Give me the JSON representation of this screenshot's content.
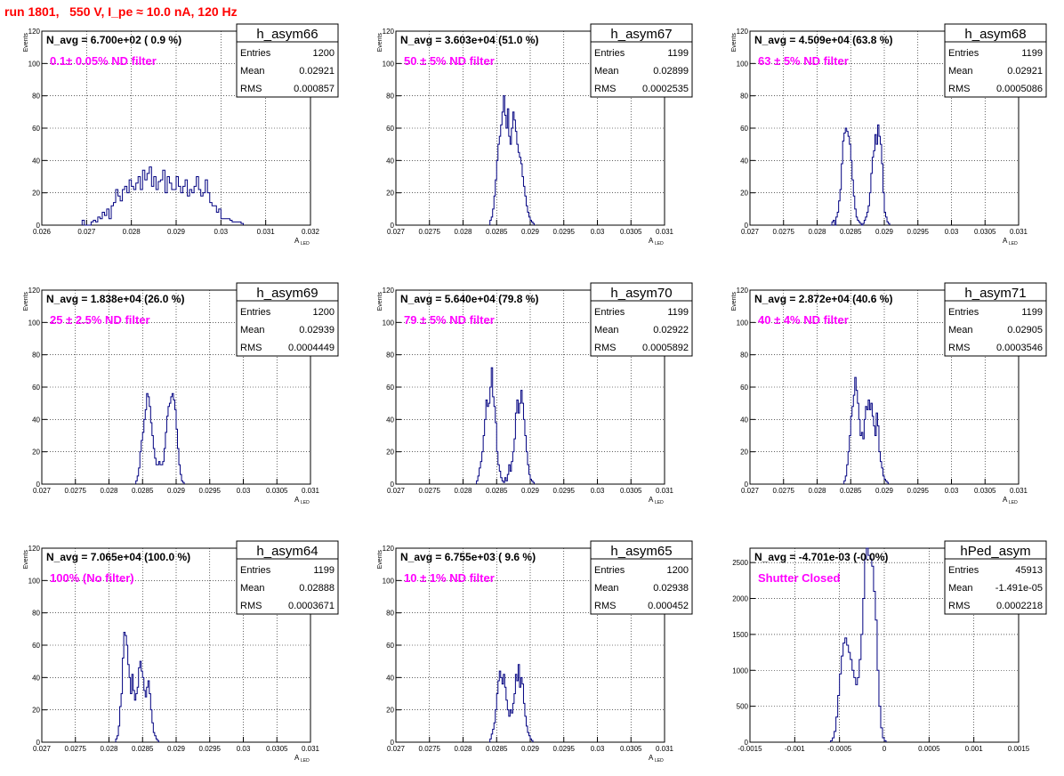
{
  "page": {
    "title": "run 1801,   550 V, I_pe ≈ 10.0 nA, 120 Hz"
  },
  "chart_data": [
    {
      "type": "histogram",
      "name": "h_asym66",
      "stats": [
        [
          "Entries",
          "1200"
        ],
        [
          "Mean",
          "0.02921"
        ],
        [
          "RMS",
          "0.000857"
        ]
      ],
      "navg": "N_avg = 6.700e+02 ( 0.9 %)",
      "filter": "0.1± 0.05% ND filter",
      "xlabel": "A",
      "xlabel_sub": "LED",
      "ylabel": "Events",
      "xlim": [
        0.026,
        0.032
      ],
      "ylim": [
        0,
        120
      ],
      "xticks": [
        "0.026",
        "0.027",
        "0.028",
        "0.029",
        "0.03",
        "0.031",
        "0.032"
      ],
      "yticks": [
        "0",
        "20",
        "40",
        "60",
        "80",
        "100",
        "120"
      ],
      "bin_start": 0.0269,
      "bin_width": 5e-05,
      "values": [
        3,
        0,
        0,
        0,
        2,
        3,
        2,
        5,
        4,
        8,
        6,
        10,
        4,
        12,
        14,
        22,
        18,
        15,
        22,
        24,
        20,
        28,
        24,
        22,
        26,
        30,
        22,
        34,
        28,
        32,
        36,
        24,
        30,
        22,
        27,
        28,
        34,
        20,
        30,
        26,
        22,
        22,
        30,
        24,
        20,
        24,
        28,
        18,
        22,
        20,
        24,
        30,
        22,
        18,
        20,
        28,
        20,
        14,
        12,
        12,
        8,
        10,
        4,
        4,
        4,
        4,
        3,
        2,
        2,
        2,
        2,
        1
      ]
    },
    {
      "type": "histogram",
      "name": "h_asym67",
      "stats": [
        [
          "Entries",
          "1199"
        ],
        [
          "Mean",
          "0.02899"
        ],
        [
          "RMS",
          "0.0002535"
        ]
      ],
      "navg": "N_avg = 3.603e+04 (51.0 %)",
      "filter": "50 ± 5% ND filter",
      "xlabel": "A",
      "xlabel_sub": "LED",
      "ylabel": "Events",
      "xlim": [
        0.027,
        0.031
      ],
      "ylim": [
        0,
        120
      ],
      "xticks": [
        "0.027",
        "0.0275",
        "0.028",
        "0.0285",
        "0.029",
        "0.0295",
        "0.03",
        "0.0305",
        "0.031"
      ],
      "yticks": [
        "0",
        "20",
        "40",
        "60",
        "80",
        "100",
        "120"
      ],
      "bin_start": 0.0284,
      "bin_width": 2e-05,
      "values": [
        3,
        5,
        10,
        18,
        28,
        40,
        50,
        55,
        62,
        70,
        80,
        68,
        60,
        72,
        55,
        50,
        60,
        70,
        65,
        58,
        50,
        45,
        42,
        38,
        30,
        24,
        18,
        12,
        8,
        5,
        3,
        2,
        1
      ]
    },
    {
      "type": "histogram",
      "name": "h_asym68",
      "stats": [
        [
          "Entries",
          "1199"
        ],
        [
          "Mean",
          "0.02921"
        ],
        [
          "RMS",
          "0.0005086"
        ]
      ],
      "navg": "N_avg = 4.509e+04 (63.8 %)",
      "filter": "63 ± 5% ND filter",
      "xlabel": "A",
      "xlabel_sub": "LED",
      "ylabel": "Events",
      "xlim": [
        0.027,
        0.031
      ],
      "ylim": [
        0,
        120
      ],
      "xticks": [
        "0.027",
        "0.0275",
        "0.028",
        "0.0285",
        "0.029",
        "0.0295",
        "0.03",
        "0.0305",
        "0.031"
      ],
      "yticks": [
        "0",
        "20",
        "40",
        "60",
        "80",
        "100",
        "120"
      ],
      "bin_start": 0.0282,
      "bin_width": 2e-05,
      "values": [
        0,
        2,
        3,
        0,
        5,
        8,
        15,
        22,
        38,
        52,
        57,
        60,
        58,
        55,
        50,
        40,
        28,
        18,
        10,
        5,
        3,
        2,
        1,
        0,
        1,
        3,
        5,
        8,
        12,
        20,
        32,
        42,
        46,
        56,
        50,
        62,
        55,
        50,
        38,
        20,
        8,
        5,
        2,
        1
      ]
    },
    {
      "type": "histogram",
      "name": "h_asym69",
      "stats": [
        [
          "Entries",
          "1200"
        ],
        [
          "Mean",
          "0.02939"
        ],
        [
          "RMS",
          "0.0004449"
        ]
      ],
      "navg": "N_avg = 1.838e+04 (26.0 %)",
      "filter": "25 ± 2.5% ND filter",
      "xlabel": "A",
      "xlabel_sub": "LED",
      "ylabel": "Events",
      "xlim": [
        0.027,
        0.031
      ],
      "ylim": [
        0,
        120
      ],
      "xticks": [
        "0.027",
        "0.0275",
        "0.028",
        "0.0285",
        "0.029",
        "0.0295",
        "0.03",
        "0.0305",
        "0.031"
      ],
      "yticks": [
        "0",
        "20",
        "40",
        "60",
        "80",
        "100",
        "120"
      ],
      "bin_start": 0.0284,
      "bin_width": 2e-05,
      "values": [
        2,
        5,
        10,
        20,
        27,
        32,
        40,
        46,
        56,
        54,
        48,
        38,
        30,
        22,
        16,
        12,
        12,
        14,
        12,
        12,
        14,
        22,
        32,
        42,
        48,
        50,
        54,
        56,
        52,
        46,
        34,
        22,
        12,
        6,
        2,
        1
      ]
    },
    {
      "type": "histogram",
      "name": "h_asym70",
      "stats": [
        [
          "Entries",
          "1199"
        ],
        [
          "Mean",
          "0.02922"
        ],
        [
          "RMS",
          "0.0005892"
        ]
      ],
      "navg": "N_avg = 5.640e+04 (79.8 %)",
      "filter": "79 ± 5% ND filter",
      "xlabel": "A",
      "xlabel_sub": "LED",
      "ylabel": "Events",
      "xlim": [
        0.027,
        0.031
      ],
      "ylim": [
        0,
        120
      ],
      "xticks": [
        "0.027",
        "0.0275",
        "0.028",
        "0.0285",
        "0.029",
        "0.0295",
        "0.03",
        "0.0305",
        "0.031"
      ],
      "yticks": [
        "0",
        "20",
        "40",
        "60",
        "80",
        "100",
        "120"
      ],
      "bin_start": 0.0282,
      "bin_width": 2e-05,
      "values": [
        2,
        5,
        10,
        14,
        20,
        30,
        40,
        52,
        48,
        50,
        60,
        72,
        54,
        48,
        38,
        20,
        12,
        8,
        4,
        2,
        1,
        4,
        2,
        6,
        12,
        8,
        14,
        20,
        28,
        44,
        52,
        44,
        50,
        58,
        50,
        40,
        30,
        20,
        12,
        6,
        3,
        2,
        1
      ]
    },
    {
      "type": "histogram",
      "name": "h_asym71",
      "stats": [
        [
          "Entries",
          "1199"
        ],
        [
          "Mean",
          "0.02905"
        ],
        [
          "RMS",
          "0.0003546"
        ]
      ],
      "navg": "N_avg = 2.872e+04 (40.6 %)",
      "filter": "40 ± 4% ND filter",
      "xlabel": "A",
      "xlabel_sub": "LED",
      "ylabel": "Events",
      "xlim": [
        0.027,
        0.031
      ],
      "ylim": [
        0,
        120
      ],
      "xticks": [
        "0.027",
        "0.0275",
        "0.028",
        "0.0285",
        "0.029",
        "0.0295",
        "0.03",
        "0.0305",
        "0.031"
      ],
      "yticks": [
        "0",
        "20",
        "40",
        "60",
        "80",
        "100",
        "120"
      ],
      "bin_start": 0.0284,
      "bin_width": 2e-05,
      "values": [
        2,
        5,
        12,
        20,
        30,
        42,
        48,
        55,
        66,
        58,
        50,
        40,
        30,
        32,
        28,
        40,
        48,
        46,
        52,
        46,
        50,
        42,
        36,
        30,
        44,
        36,
        20,
        14,
        10,
        5,
        3,
        2,
        1
      ]
    },
    {
      "type": "histogram",
      "name": "h_asym64",
      "stats": [
        [
          "Entries",
          "1199"
        ],
        [
          "Mean",
          "0.02888"
        ],
        [
          "RMS",
          "0.0003671"
        ]
      ],
      "navg": "N_avg = 7.065e+04 (100.0 %)",
      "filter": "100% (No filter)",
      "xlabel": "A",
      "xlabel_sub": "LED",
      "ylabel": "Events",
      "xlim": [
        0.027,
        0.031
      ],
      "ylim": [
        0,
        120
      ],
      "xticks": [
        "0.027",
        "0.0275",
        "0.028",
        "0.0285",
        "0.029",
        "0.0295",
        "0.03",
        "0.0305",
        "0.031"
      ],
      "yticks": [
        "0",
        "20",
        "40",
        "60",
        "80",
        "100",
        "120"
      ],
      "bin_start": 0.0281,
      "bin_width": 2e-05,
      "values": [
        2,
        4,
        10,
        22,
        30,
        52,
        68,
        66,
        60,
        48,
        40,
        30,
        42,
        32,
        26,
        30,
        34,
        46,
        50,
        44,
        40,
        32,
        28,
        34,
        38,
        30,
        20,
        12,
        6,
        4,
        2,
        1
      ]
    },
    {
      "type": "histogram",
      "name": "h_asym65",
      "stats": [
        [
          "Entries",
          "1200"
        ],
        [
          "Mean",
          "0.02938"
        ],
        [
          "RMS",
          "0.000452"
        ]
      ],
      "navg": "N_avg = 6.755e+03 ( 9.6 %)",
      "filter": "10 ± 1% ND filter",
      "xlabel": "A",
      "xlabel_sub": "LED",
      "ylabel": "Events",
      "xlim": [
        0.027,
        0.031
      ],
      "ylim": [
        0,
        120
      ],
      "xticks": [
        "0.027",
        "0.0275",
        "0.028",
        "0.0285",
        "0.029",
        "0.0295",
        "0.03",
        "0.0305",
        "0.031"
      ],
      "yticks": [
        "0",
        "20",
        "40",
        "60",
        "80",
        "100",
        "120"
      ],
      "bin_start": 0.0284,
      "bin_width": 2e-05,
      "values": [
        2,
        5,
        8,
        12,
        20,
        30,
        38,
        44,
        40,
        36,
        42,
        34,
        26,
        20,
        16,
        20,
        18,
        24,
        30,
        42,
        38,
        48,
        34,
        40,
        36,
        24,
        16,
        10,
        6,
        4,
        2,
        1
      ]
    },
    {
      "type": "histogram",
      "name": "hPed_asym",
      "stats": [
        [
          "Entries",
          "45913"
        ],
        [
          "Mean",
          "-1.491e-05"
        ],
        [
          "RMS",
          "0.0002218"
        ]
      ],
      "navg": "N_avg = -4.701e-03 (-0.0%)",
      "filter": "Shutter Closed",
      "xlabel": "",
      "xlabel_sub": "",
      "ylabel": "",
      "xlim": [
        -0.0015,
        0.0015
      ],
      "ylim": [
        0,
        2700
      ],
      "xticks": [
        "-0.0015",
        "-0.001",
        "-0.0005",
        "0",
        "0.0005",
        "0.001",
        "0.0015"
      ],
      "yticks": [
        "0",
        "500",
        "1000",
        "1500",
        "2000",
        "2500"
      ],
      "bin_start": -0.0006,
      "bin_width": 2e-05,
      "values": [
        20,
        60,
        150,
        350,
        650,
        950,
        1200,
        1380,
        1450,
        1350,
        1250,
        1150,
        1000,
        900,
        800,
        900,
        1150,
        1500,
        2000,
        2550,
        2700,
        2600,
        2550,
        2450,
        2100,
        1700,
        1000,
        500,
        200,
        60,
        20
      ]
    }
  ]
}
